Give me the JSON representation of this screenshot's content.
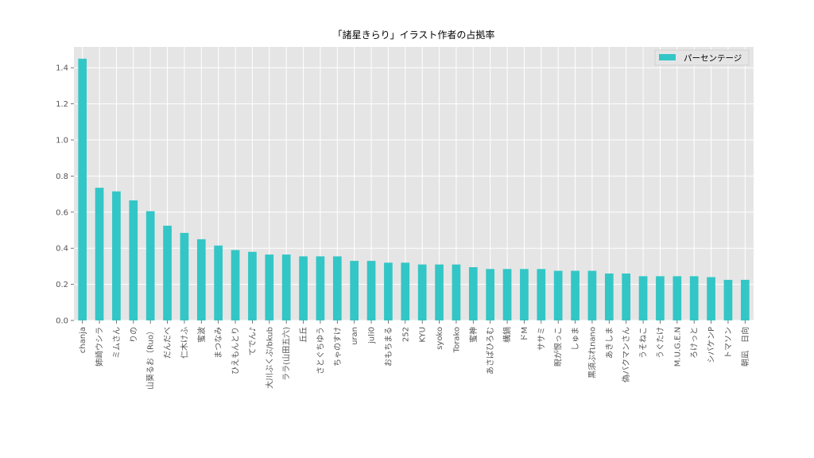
{
  "chart_data": {
    "type": "bar",
    "title": "「諸星きらり」イラスト作者の占拠率",
    "xlabel": "",
    "ylabel": "",
    "ylim": [
      0,
      1.52
    ],
    "yticks": [
      0.0,
      0.2,
      0.4,
      0.6,
      0.8,
      1.0,
      1.2,
      1.4
    ],
    "ytick_labels": [
      "0.0",
      "0.2",
      "0.4",
      "0.6",
      "0.8",
      "1.0",
      "1.2",
      "1.4"
    ],
    "grid": true,
    "legend_position": "top-right",
    "categories": [
      "chanja",
      "姉崎ウシラ",
      "ミムさん",
      "りの",
      "山葵るお（Ruo）",
      "だんだべ",
      "仁木けふ",
      "蜜波",
      "まつなみ",
      "ひえもんとり",
      "てでん♪",
      "大川ぶくぶ/bkub",
      "ララ(山田五六)",
      "丘丘",
      "さとぐちゆう",
      "ちゃのすけ",
      "uran",
      "juli0",
      "おもちまる",
      "252",
      "KYU",
      "syoko",
      "Torako",
      "蜜神",
      "あさばひろむ",
      "構鍋",
      "ドM",
      "ササミ",
      "睨が恨っこ",
      "しゅま",
      "黒須ぶれnano",
      "あきしま",
      "偽バクマンさん",
      "うそねこ",
      "うぐたけ",
      "M.U.G.E.N",
      "ろけっと",
      "シバケンP",
      "トマソン",
      "朝凪　日向"
    ],
    "series": [
      {
        "name": "パーセンテージ",
        "color": "#33c6c6",
        "values": [
          1.45,
          0.735,
          0.715,
          0.665,
          0.605,
          0.525,
          0.485,
          0.45,
          0.415,
          0.39,
          0.38,
          0.365,
          0.365,
          0.355,
          0.355,
          0.355,
          0.33,
          0.33,
          0.32,
          0.32,
          0.31,
          0.31,
          0.31,
          0.295,
          0.285,
          0.285,
          0.285,
          0.285,
          0.275,
          0.275,
          0.275,
          0.26,
          0.26,
          0.245,
          0.245,
          0.245,
          0.245,
          0.24,
          0.225,
          0.225
        ]
      }
    ]
  }
}
